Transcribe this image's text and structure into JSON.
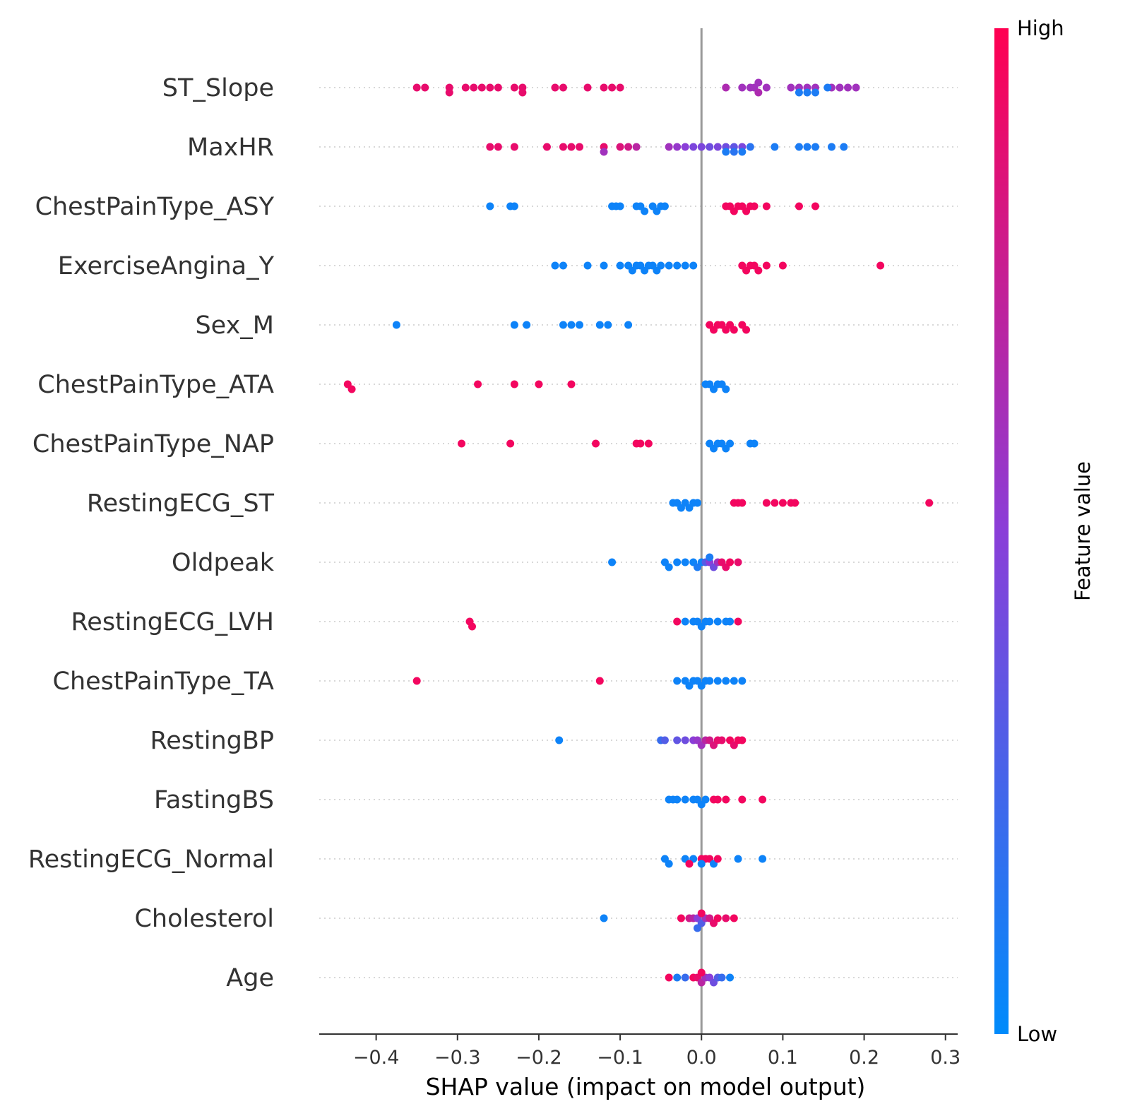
{
  "chart_data": {
    "type": "scatter",
    "subtype": "shap-beeswarm",
    "xlabel": "SHAP value (impact on model output)",
    "xlim": [
      -0.47,
      0.315
    ],
    "x_ticks": [
      -0.4,
      -0.3,
      -0.2,
      -0.1,
      0.0,
      0.1,
      0.2,
      0.3
    ],
    "x_tick_labels": [
      "−0.4",
      "−0.3",
      "−0.2",
      "−0.1",
      "0.0",
      "0.1",
      "0.2",
      "0.3"
    ],
    "grid": "dotted horizontal per feature",
    "colorbar": {
      "label": "Feature value",
      "high_label": "High",
      "low_label": "Low",
      "high_color": "#ff0051",
      "low_color": "#008bfb",
      "placement": "right"
    },
    "features": [
      {
        "name": "ST_Slope",
        "points": [
          [
            -0.35,
            0.9
          ],
          [
            -0.34,
            0.9
          ],
          [
            -0.31,
            0.9
          ],
          [
            -0.31,
            0.9
          ],
          [
            -0.29,
            0.9
          ],
          [
            -0.28,
            0.9
          ],
          [
            -0.27,
            0.9
          ],
          [
            -0.26,
            0.9
          ],
          [
            -0.25,
            0.9
          ],
          [
            -0.23,
            0.9
          ],
          [
            -0.22,
            0.9
          ],
          [
            -0.22,
            0.9
          ],
          [
            -0.18,
            0.9
          ],
          [
            -0.17,
            0.9
          ],
          [
            -0.14,
            0.9
          ],
          [
            -0.12,
            0.9
          ],
          [
            -0.11,
            0.9
          ],
          [
            -0.1,
            0.9
          ],
          [
            0.03,
            0.65
          ],
          [
            0.05,
            0.6
          ],
          [
            0.06,
            0.6
          ],
          [
            0.065,
            0.6
          ],
          [
            0.07,
            0.65
          ],
          [
            0.07,
            0.6
          ],
          [
            0.08,
            0.6
          ],
          [
            0.11,
            0.6
          ],
          [
            0.12,
            0.6
          ],
          [
            0.13,
            0.6
          ],
          [
            0.14,
            0.6
          ],
          [
            0.16,
            0.6
          ],
          [
            0.17,
            0.6
          ],
          [
            0.18,
            0.6
          ],
          [
            0.19,
            0.6
          ],
          [
            0.12,
            0.1
          ],
          [
            0.14,
            0.1
          ],
          [
            0.155,
            0.1
          ],
          [
            0.13,
            0.1
          ]
        ]
      },
      {
        "name": "MaxHR",
        "points": [
          [
            -0.26,
            0.9
          ],
          [
            -0.25,
            0.9
          ],
          [
            -0.23,
            0.9
          ],
          [
            -0.19,
            0.9
          ],
          [
            -0.17,
            0.9
          ],
          [
            -0.16,
            0.9
          ],
          [
            -0.15,
            0.9
          ],
          [
            -0.12,
            0.9
          ],
          [
            -0.1,
            0.85
          ],
          [
            -0.09,
            0.8
          ],
          [
            -0.08,
            0.7
          ],
          [
            -0.12,
            0.6
          ],
          [
            -0.04,
            0.6
          ],
          [
            -0.03,
            0.55
          ],
          [
            -0.02,
            0.5
          ],
          [
            -0.01,
            0.45
          ],
          [
            0.0,
            0.45
          ],
          [
            0.01,
            0.4
          ],
          [
            0.02,
            0.45
          ],
          [
            0.03,
            0.4
          ],
          [
            0.04,
            0.35
          ],
          [
            0.05,
            0.45
          ],
          [
            0.06,
            0.15
          ],
          [
            0.09,
            0.1
          ],
          [
            0.12,
            0.1
          ],
          [
            0.13,
            0.1
          ],
          [
            0.14,
            0.1
          ],
          [
            0.16,
            0.1
          ],
          [
            0.175,
            0.1
          ],
          [
            0.05,
            0.1
          ],
          [
            0.03,
            0.1
          ],
          [
            0.04,
            0.15
          ]
        ]
      },
      {
        "name": "ChestPainType_ASY",
        "points": [
          [
            -0.26,
            0.05
          ],
          [
            -0.235,
            0.05
          ],
          [
            -0.23,
            0.05
          ],
          [
            -0.11,
            0.05
          ],
          [
            -0.105,
            0.05
          ],
          [
            -0.1,
            0.05
          ],
          [
            -0.08,
            0.05
          ],
          [
            -0.075,
            0.05
          ],
          [
            -0.07,
            0.05
          ],
          [
            -0.06,
            0.05
          ],
          [
            -0.055,
            0.05
          ],
          [
            -0.05,
            0.05
          ],
          [
            -0.045,
            0.05
          ],
          [
            0.03,
            0.95
          ],
          [
            0.035,
            0.95
          ],
          [
            0.04,
            0.95
          ],
          [
            0.045,
            0.95
          ],
          [
            0.05,
            0.95
          ],
          [
            0.055,
            0.95
          ],
          [
            0.06,
            0.95
          ],
          [
            0.065,
            0.95
          ],
          [
            0.08,
            0.95
          ],
          [
            0.12,
            0.95
          ],
          [
            0.14,
            0.95
          ]
        ]
      },
      {
        "name": "ExerciseAngina_Y",
        "points": [
          [
            -0.18,
            0.05
          ],
          [
            -0.17,
            0.05
          ],
          [
            -0.14,
            0.05
          ],
          [
            -0.12,
            0.05
          ],
          [
            -0.1,
            0.05
          ],
          [
            -0.09,
            0.05
          ],
          [
            -0.085,
            0.05
          ],
          [
            -0.08,
            0.05
          ],
          [
            -0.075,
            0.05
          ],
          [
            -0.07,
            0.05
          ],
          [
            -0.065,
            0.05
          ],
          [
            -0.06,
            0.05
          ],
          [
            -0.055,
            0.05
          ],
          [
            -0.05,
            0.05
          ],
          [
            -0.04,
            0.05
          ],
          [
            -0.03,
            0.05
          ],
          [
            -0.02,
            0.05
          ],
          [
            -0.01,
            0.05
          ],
          [
            0.05,
            0.95
          ],
          [
            0.055,
            0.95
          ],
          [
            0.06,
            0.95
          ],
          [
            0.065,
            0.95
          ],
          [
            0.07,
            0.95
          ],
          [
            0.08,
            0.95
          ],
          [
            0.1,
            0.95
          ],
          [
            0.22,
            0.95
          ]
        ]
      },
      {
        "name": "Sex_M",
        "points": [
          [
            -0.375,
            0.05
          ],
          [
            -0.23,
            0.05
          ],
          [
            -0.215,
            0.05
          ],
          [
            -0.17,
            0.05
          ],
          [
            -0.16,
            0.05
          ],
          [
            -0.15,
            0.05
          ],
          [
            -0.125,
            0.05
          ],
          [
            -0.115,
            0.05
          ],
          [
            -0.09,
            0.05
          ],
          [
            0.01,
            0.95
          ],
          [
            0.015,
            0.95
          ],
          [
            0.02,
            0.95
          ],
          [
            0.025,
            0.95
          ],
          [
            0.03,
            0.95
          ],
          [
            0.035,
            0.95
          ],
          [
            0.04,
            0.95
          ],
          [
            0.05,
            0.95
          ],
          [
            0.055,
            0.95
          ]
        ]
      },
      {
        "name": "ChestPainType_ATA",
        "points": [
          [
            -0.435,
            0.95
          ],
          [
            -0.43,
            0.95
          ],
          [
            -0.275,
            0.95
          ],
          [
            -0.23,
            0.95
          ],
          [
            -0.2,
            0.95
          ],
          [
            -0.16,
            0.95
          ],
          [
            0.005,
            0.05
          ],
          [
            0.01,
            0.05
          ],
          [
            0.015,
            0.05
          ],
          [
            0.02,
            0.05
          ],
          [
            0.025,
            0.05
          ],
          [
            0.03,
            0.05
          ]
        ]
      },
      {
        "name": "ChestPainType_NAP",
        "points": [
          [
            -0.295,
            0.95
          ],
          [
            -0.235,
            0.95
          ],
          [
            -0.13,
            0.95
          ],
          [
            -0.08,
            0.95
          ],
          [
            -0.075,
            0.95
          ],
          [
            -0.065,
            0.95
          ],
          [
            0.01,
            0.05
          ],
          [
            0.015,
            0.05
          ],
          [
            0.02,
            0.05
          ],
          [
            0.025,
            0.05
          ],
          [
            0.03,
            0.05
          ],
          [
            0.035,
            0.05
          ],
          [
            0.06,
            0.05
          ],
          [
            0.065,
            0.05
          ]
        ]
      },
      {
        "name": "RestingECG_ST",
        "points": [
          [
            -0.035,
            0.05
          ],
          [
            -0.03,
            0.05
          ],
          [
            -0.025,
            0.05
          ],
          [
            -0.02,
            0.05
          ],
          [
            -0.015,
            0.05
          ],
          [
            -0.01,
            0.05
          ],
          [
            -0.005,
            0.05
          ],
          [
            0.04,
            0.95
          ],
          [
            0.045,
            0.95
          ],
          [
            0.05,
            0.95
          ],
          [
            0.08,
            0.95
          ],
          [
            0.09,
            0.95
          ],
          [
            0.1,
            0.95
          ],
          [
            0.11,
            0.95
          ],
          [
            0.115,
            0.95
          ],
          [
            0.28,
            0.95
          ]
        ]
      },
      {
        "name": "Oldpeak",
        "points": [
          [
            -0.11,
            0.05
          ],
          [
            -0.045,
            0.05
          ],
          [
            -0.04,
            0.05
          ],
          [
            -0.03,
            0.05
          ],
          [
            -0.02,
            0.05
          ],
          [
            -0.01,
            0.05
          ],
          [
            0.0,
            0.05
          ],
          [
            0.005,
            0.3
          ],
          [
            0.01,
            0.5
          ],
          [
            0.015,
            0.4
          ],
          [
            0.02,
            0.6
          ],
          [
            0.025,
            0.9
          ],
          [
            0.03,
            0.9
          ],
          [
            0.035,
            0.95
          ],
          [
            0.045,
            0.9
          ],
          [
            -0.005,
            0.1
          ],
          [
            0.01,
            0.1
          ]
        ]
      },
      {
        "name": "RestingECG_LVH",
        "points": [
          [
            -0.285,
            0.95
          ],
          [
            -0.282,
            0.95
          ],
          [
            -0.03,
            0.95
          ],
          [
            -0.02,
            0.05
          ],
          [
            -0.01,
            0.05
          ],
          [
            -0.005,
            0.05
          ],
          [
            0.0,
            0.05
          ],
          [
            0.005,
            0.05
          ],
          [
            0.01,
            0.05
          ],
          [
            0.02,
            0.05
          ],
          [
            0.03,
            0.05
          ],
          [
            0.045,
            0.95
          ],
          [
            0.035,
            0.05
          ]
        ]
      },
      {
        "name": "ChestPainType_TA",
        "points": [
          [
            -0.35,
            0.95
          ],
          [
            -0.125,
            0.95
          ],
          [
            -0.03,
            0.05
          ],
          [
            -0.02,
            0.05
          ],
          [
            -0.015,
            0.05
          ],
          [
            -0.01,
            0.05
          ],
          [
            -0.005,
            0.05
          ],
          [
            0.0,
            0.05
          ],
          [
            0.005,
            0.05
          ],
          [
            0.01,
            0.05
          ],
          [
            0.02,
            0.05
          ],
          [
            0.03,
            0.05
          ],
          [
            0.04,
            0.05
          ],
          [
            0.05,
            0.05
          ]
        ]
      },
      {
        "name": "RestingBP",
        "points": [
          [
            -0.175,
            0.05
          ],
          [
            -0.05,
            0.2
          ],
          [
            -0.045,
            0.3
          ],
          [
            -0.03,
            0.35
          ],
          [
            -0.02,
            0.4
          ],
          [
            -0.01,
            0.5
          ],
          [
            -0.005,
            0.55
          ],
          [
            0.0,
            0.6
          ],
          [
            0.005,
            0.7
          ],
          [
            0.01,
            0.8
          ],
          [
            0.015,
            0.85
          ],
          [
            0.02,
            0.9
          ],
          [
            0.025,
            0.9
          ],
          [
            0.035,
            0.95
          ],
          [
            0.04,
            0.9
          ],
          [
            0.05,
            0.95
          ],
          [
            0.045,
            0.95
          ]
        ]
      },
      {
        "name": "FastingBS",
        "points": [
          [
            -0.04,
            0.05
          ],
          [
            -0.035,
            0.05
          ],
          [
            -0.03,
            0.05
          ],
          [
            -0.02,
            0.05
          ],
          [
            -0.01,
            0.05
          ],
          [
            -0.005,
            0.05
          ],
          [
            0.0,
            0.05
          ],
          [
            0.005,
            0.05
          ],
          [
            0.015,
            0.95
          ],
          [
            0.02,
            0.95
          ],
          [
            0.03,
            0.95
          ],
          [
            0.05,
            0.95
          ],
          [
            0.075,
            0.95
          ]
        ]
      },
      {
        "name": "RestingECG_Normal",
        "points": [
          [
            -0.045,
            0.05
          ],
          [
            -0.04,
            0.05
          ],
          [
            -0.02,
            0.05
          ],
          [
            -0.01,
            0.05
          ],
          [
            0.0,
            0.95
          ],
          [
            0.005,
            0.95
          ],
          [
            0.01,
            0.95
          ],
          [
            0.015,
            0.05
          ],
          [
            0.02,
            0.95
          ],
          [
            0.045,
            0.05
          ],
          [
            0.075,
            0.05
          ],
          [
            -0.015,
            0.95
          ],
          [
            0.0,
            0.05
          ]
        ]
      },
      {
        "name": "Cholesterol",
        "points": [
          [
            -0.12,
            0.05
          ],
          [
            -0.025,
            0.95
          ],
          [
            -0.015,
            0.8
          ],
          [
            -0.01,
            0.7
          ],
          [
            -0.005,
            0.5
          ],
          [
            0.0,
            0.3
          ],
          [
            0.005,
            0.6
          ],
          [
            0.01,
            0.8
          ],
          [
            0.015,
            0.9
          ],
          [
            0.02,
            0.95
          ],
          [
            0.03,
            0.9
          ],
          [
            0.04,
            0.95
          ],
          [
            0.0,
            0.95
          ],
          [
            -0.005,
            0.2
          ]
        ]
      },
      {
        "name": "Age",
        "points": [
          [
            -0.04,
            0.95
          ],
          [
            -0.03,
            0.1
          ],
          [
            -0.02,
            0.2
          ],
          [
            -0.01,
            0.95
          ],
          [
            -0.005,
            0.9
          ],
          [
            0.0,
            0.7
          ],
          [
            0.005,
            0.6
          ],
          [
            0.01,
            0.5
          ],
          [
            0.015,
            0.4
          ],
          [
            0.02,
            0.3
          ],
          [
            0.025,
            0.2
          ],
          [
            0.035,
            0.05
          ],
          [
            0.0,
            0.95
          ]
        ]
      }
    ]
  }
}
